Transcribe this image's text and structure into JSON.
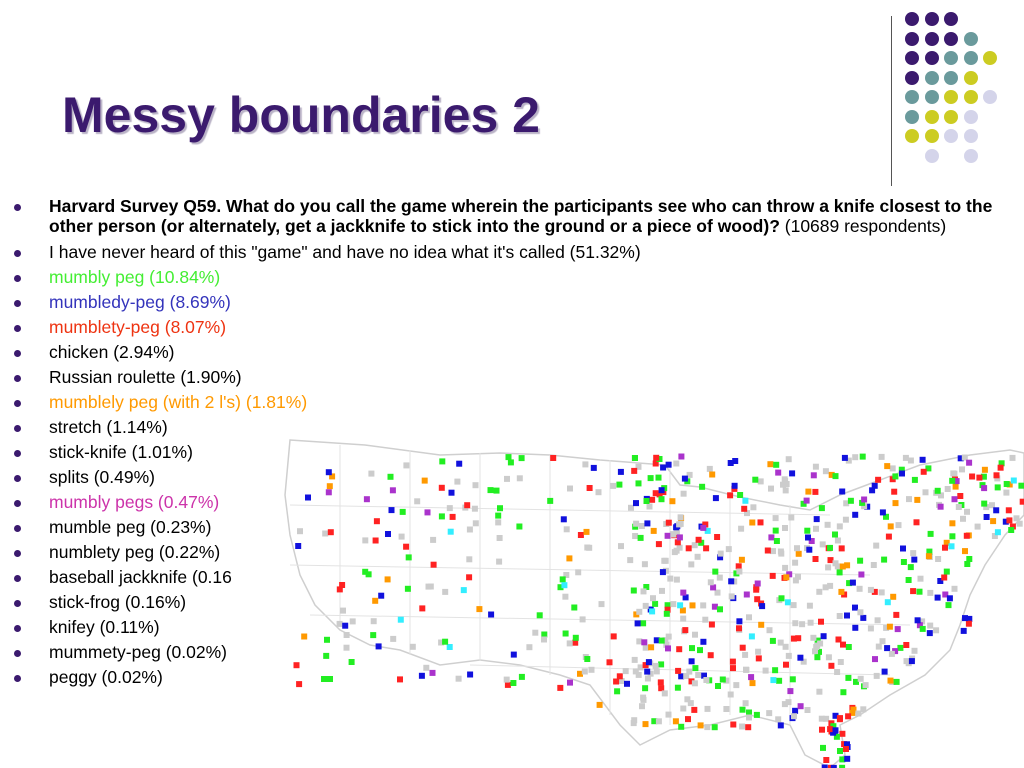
{
  "slide": {
    "title": "Messy boundaries 2"
  },
  "question": {
    "bold_text": "Harvard Survey Q59. What do you call the game wherein the participants see who can throw a knife closest to the other person (or alternately, get a jackknife to stick into the ground or a piece of wood)?",
    "respondents": " (10689 respondents)"
  },
  "answers": [
    {
      "text": "I have never heard of this \"game\" and have no idea what it's called (51.32%)",
      "color": "#000000"
    },
    {
      "text": "mumbly peg (10.84%)",
      "color": "#44ee33"
    },
    {
      "text": "mumbledy-peg (8.69%)",
      "color": "#3333bb"
    },
    {
      "text": "mumblety-peg (8.07%)",
      "color": "#ee3311"
    },
    {
      "text": "chicken (2.94%)",
      "color": "#000000"
    },
    {
      "text": "Russian roulette (1.90%)",
      "color": "#000000"
    },
    {
      "text": "mumblely peg (with 2 l's) (1.81%)",
      "color": "#ff9900"
    },
    {
      "text": "stretch (1.14%)",
      "color": "#000000"
    },
    {
      "text": "stick-knife (1.01%)",
      "color": "#000000"
    },
    {
      "text": "splits (0.49%)",
      "color": "#000000"
    },
    {
      "text": "mumbly pegs (0.47%)",
      "color": "#cc33aa"
    },
    {
      "text": "mumble peg (0.23%)",
      "color": "#000000"
    },
    {
      "text": "numblety peg (0.22%)",
      "color": "#000000"
    },
    {
      "text": "baseball jackknife (0.16",
      "color": "#000000"
    },
    {
      "text": "stick-frog (0.16%)",
      "color": "#000000"
    },
    {
      "text": "knifey (0.11%)",
      "color": "#000000"
    },
    {
      "text": "mummety-peg (0.02%)",
      "color": "#000000"
    },
    {
      "text": "peggy (0.02%)",
      "color": "#000000"
    }
  ],
  "colors": {
    "title": "#3b1a6e",
    "bullet": "#3b1a6e",
    "dot_purple": "#3b1a6e",
    "dot_teal": "#6a9a9c",
    "dot_yellow": "#cccc22",
    "dot_lavender": "#d4d4ea"
  },
  "map": {
    "description_icon": "us-dialect-map",
    "marker_colors": [
      "#ff2222",
      "#22ee22",
      "#1111dd",
      "#ff9900",
      "#aa33cc",
      "#33eeff",
      "#cccccc"
    ]
  }
}
